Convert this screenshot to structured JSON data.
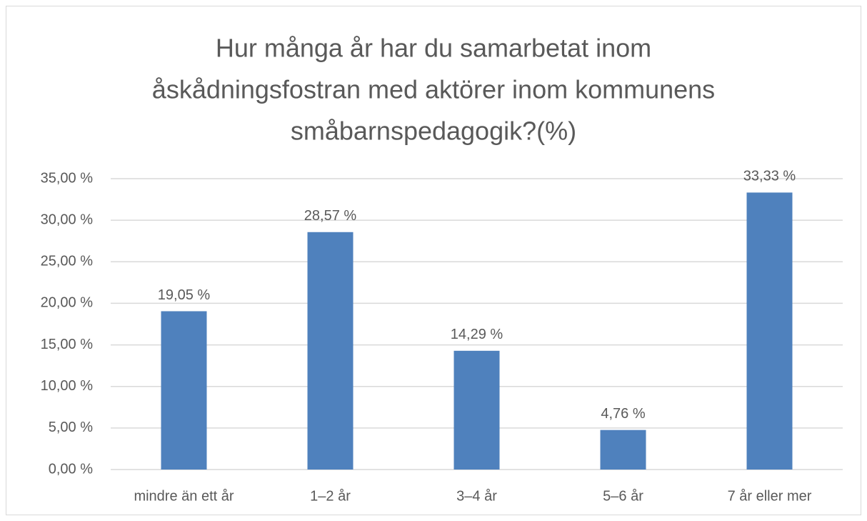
{
  "chart_data": {
    "type": "bar",
    "title": [
      "Hur många år har du samarbetat inom",
      "åskådningsfostran med aktörer inom kommunens",
      "småbarnspedagogik?(%)"
    ],
    "categories": [
      "mindre än ett år",
      "1–2 år",
      "3–4 år",
      "5–6 år",
      "7 år eller mer"
    ],
    "values": [
      19.05,
      28.57,
      14.29,
      4.76,
      33.33
    ],
    "value_labels": [
      "19,05 %",
      "28,57 %",
      "14,29 %",
      "4,76 %",
      "33,33 %"
    ],
    "color": "#4f81bd",
    "ylim": [
      0,
      35
    ],
    "yticks": [
      {
        "value": 0,
        "label": "0,00 %"
      },
      {
        "value": 5,
        "label": "5,00 %"
      },
      {
        "value": 10,
        "label": "10,00 %"
      },
      {
        "value": 15,
        "label": "15,00 %"
      },
      {
        "value": 20,
        "label": "20,00 %"
      },
      {
        "value": 25,
        "label": "25,00 %"
      },
      {
        "value": 30,
        "label": "30,00 %"
      },
      {
        "value": 35,
        "label": "35,00 %"
      }
    ],
    "grid": true
  }
}
